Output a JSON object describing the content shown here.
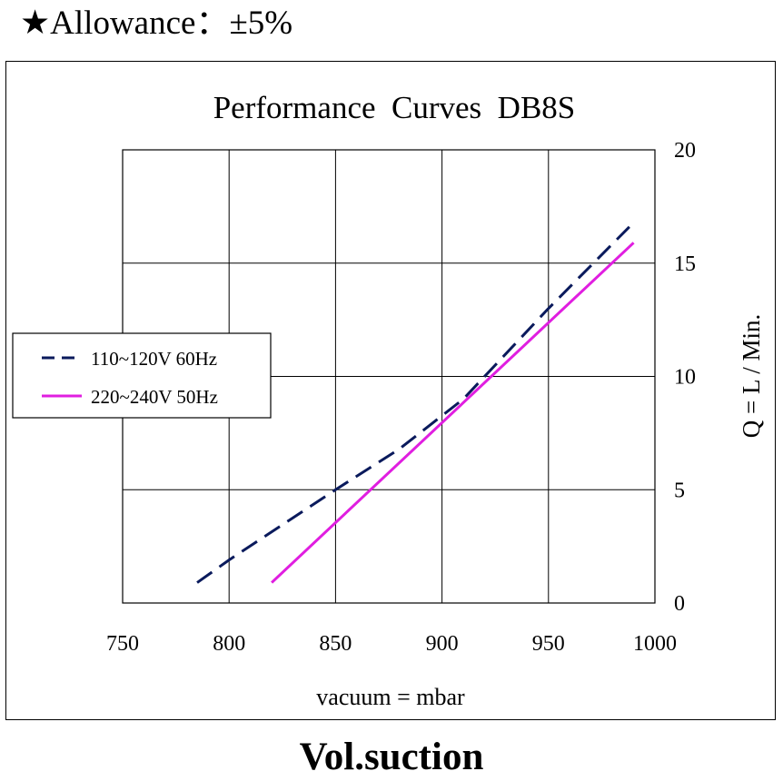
{
  "header": {
    "star": "★",
    "text": "Allowance：±5%"
  },
  "caption": "Vol.suction",
  "chart_data": {
    "type": "line",
    "title": "Performance  Curves  DB8S",
    "xlabel": "vacuum = mbar",
    "ylabel": "Q = L / Min.",
    "xlim": [
      750,
      1000
    ],
    "ylim": [
      0,
      20
    ],
    "x_ticks": [
      750,
      800,
      850,
      900,
      950,
      1000
    ],
    "y_ticks": [
      0,
      5,
      10,
      15,
      20
    ],
    "grid": true,
    "y_axis_side": "right",
    "legend_position": "left-middle",
    "series": [
      {
        "name": "110~120V 60Hz",
        "color": "#0a1a5c",
        "style": "dashed",
        "x": [
          785,
          800,
          850,
          880,
          910,
          950,
          988
        ],
        "y": [
          0.9,
          1.9,
          5.0,
          6.8,
          9.0,
          13.0,
          16.6
        ]
      },
      {
        "name": "220~240V 50Hz",
        "color": "#e01ee0",
        "style": "solid",
        "x": [
          820,
          990
        ],
        "y": [
          0.9,
          15.9
        ]
      }
    ]
  }
}
